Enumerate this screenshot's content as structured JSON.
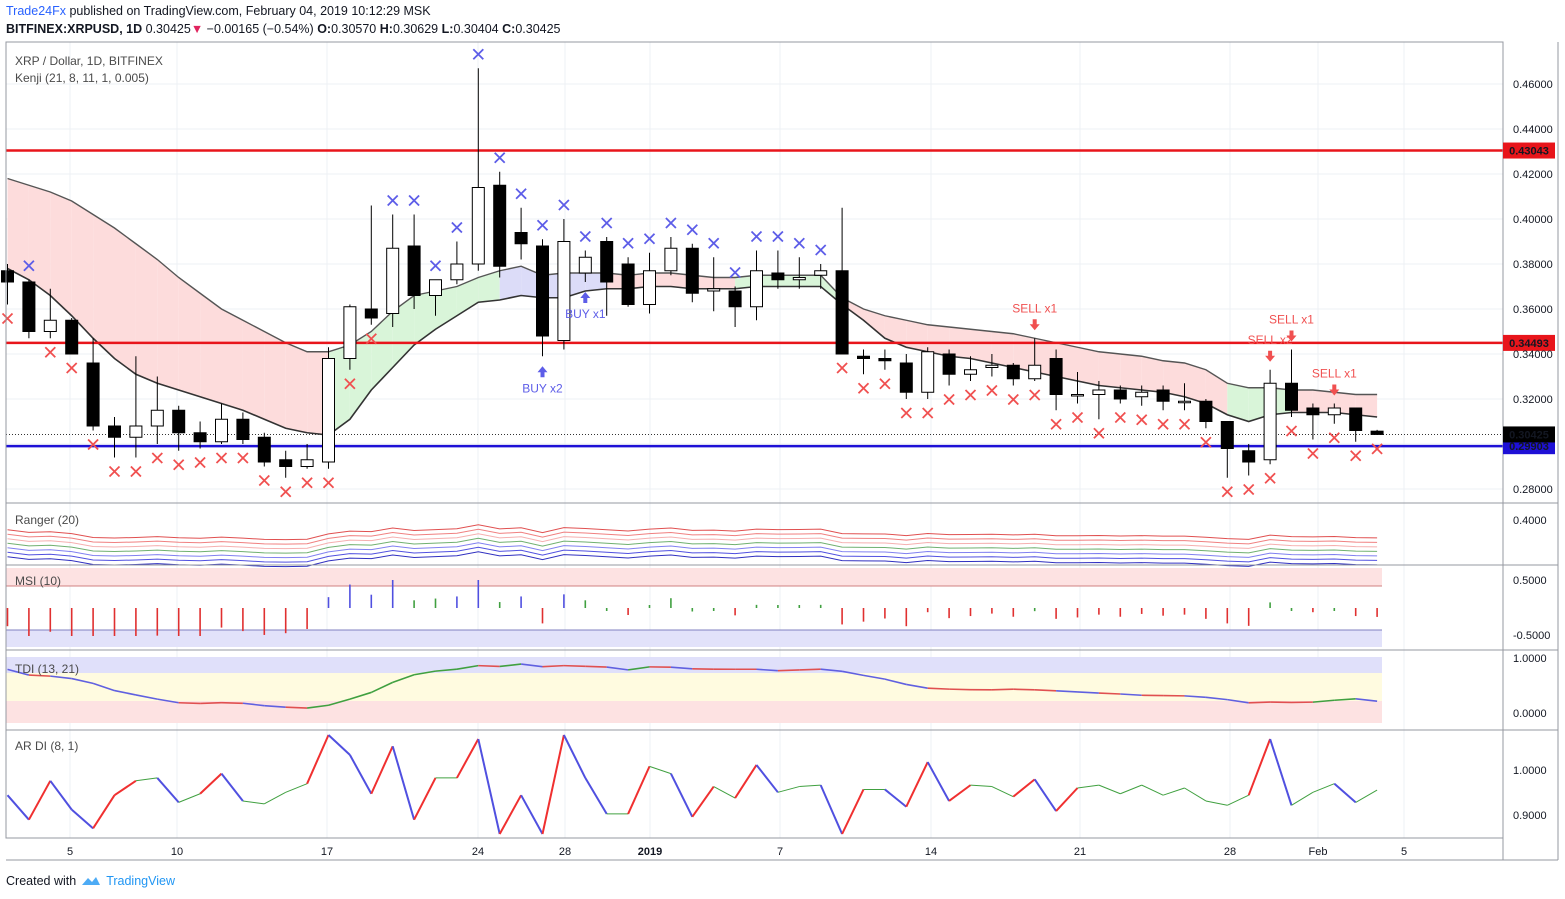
{
  "header": {
    "publisher": "Trade24Fx",
    "published_text": "published on TradingView.com, February 04, 2019 10:12:29 MSK",
    "symbol": "BITFINEX:XRPUSD, 1D",
    "last": "0.30425",
    "change": "−0.00165 (−0.54%)",
    "o_label": "O:",
    "o": "0.30570",
    "h_label": "H:",
    "h": "0.30629",
    "l_label": "L:",
    "l": "0.30404",
    "c_label": "C:",
    "c": "0.30425"
  },
  "main_pane": {
    "title": "XRP / Dollar, 1D, BITFINEX",
    "indicator": "Kenji (21, 8, 11, 1, 0.005)",
    "price_ticks": [
      "0.46000",
      "0.44000",
      "0.42000",
      "0.40000",
      "0.38000",
      "0.36000",
      "0.34000",
      "0.32000",
      "0.28000"
    ],
    "levels": [
      {
        "label": "0.43043",
        "value": 0.43043,
        "color": "#e8151b"
      },
      {
        "label": "0.34493",
        "value": 0.34493,
        "color": "#e8151b"
      },
      {
        "label": "0.29903",
        "value": 0.29903,
        "color": "#1e10d6"
      }
    ],
    "last_price_label": "0.30425",
    "signals": [
      {
        "text": "BUY x2",
        "type": "buy",
        "bar": 25
      },
      {
        "text": "BUY x1",
        "type": "buy",
        "bar": 27
      },
      {
        "text": "SELL x1",
        "type": "sell",
        "bar": 48
      },
      {
        "text": "SELL x2",
        "type": "sell",
        "bar": 59
      },
      {
        "text": "SELL x1",
        "type": "sell",
        "bar": 60
      },
      {
        "text": "SELL x1",
        "type": "sell",
        "bar": 62
      }
    ]
  },
  "panes": {
    "ranger": {
      "label": "Ranger (20)",
      "tick": "0.4000"
    },
    "msi": {
      "label": "MSI (10)",
      "ticks": [
        "0.5000",
        "-0.5000"
      ]
    },
    "tdi": {
      "label": "TDI (13, 21)",
      "ticks": [
        "1.0000",
        "0.0000"
      ]
    },
    "ardi": {
      "label": "AR DI (8, 1)",
      "ticks": [
        "1.0000",
        "0.9000"
      ]
    }
  },
  "time_axis": [
    "5",
    "10",
    "17",
    "24",
    "28",
    "2019",
    "7",
    "14",
    "21",
    "28",
    "Feb",
    "5"
  ],
  "colors": {
    "up": "#ffffff",
    "down": "#000000",
    "buy": "#5d5de8",
    "sell": "#f05050",
    "cloud_bear": "#fddcdc",
    "cloud_bull": "#d9f5d9"
  },
  "footer": {
    "created_with": "Created with",
    "brand": "TradingView"
  },
  "chart_data": {
    "type": "candlestick",
    "title": "XRP / Dollar, 1D, BITFINEX",
    "ylabel": "",
    "ylim": [
      0.2735,
      0.4755
    ],
    "candles": [
      {
        "o": 0.377,
        "h": 0.38,
        "l": 0.362,
        "c": 0.372
      },
      {
        "o": 0.372,
        "h": 0.373,
        "l": 0.347,
        "c": 0.35
      },
      {
        "o": 0.35,
        "h": 0.369,
        "l": 0.347,
        "c": 0.355
      },
      {
        "o": 0.355,
        "h": 0.356,
        "l": 0.34,
        "c": 0.34
      },
      {
        "o": 0.336,
        "h": 0.347,
        "l": 0.306,
        "c": 0.308
      },
      {
        "o": 0.308,
        "h": 0.312,
        "l": 0.294,
        "c": 0.303
      },
      {
        "o": 0.303,
        "h": 0.339,
        "l": 0.294,
        "c": 0.308
      },
      {
        "o": 0.308,
        "h": 0.33,
        "l": 0.3,
        "c": 0.315
      },
      {
        "o": 0.315,
        "h": 0.317,
        "l": 0.297,
        "c": 0.305
      },
      {
        "o": 0.305,
        "h": 0.31,
        "l": 0.298,
        "c": 0.301
      },
      {
        "o": 0.301,
        "h": 0.318,
        "l": 0.3,
        "c": 0.311
      },
      {
        "o": 0.311,
        "h": 0.314,
        "l": 0.3,
        "c": 0.302
      },
      {
        "o": 0.303,
        "h": 0.305,
        "l": 0.29,
        "c": 0.292
      },
      {
        "o": 0.293,
        "h": 0.297,
        "l": 0.285,
        "c": 0.29
      },
      {
        "o": 0.29,
        "h": 0.3,
        "l": 0.289,
        "c": 0.293
      },
      {
        "o": 0.292,
        "h": 0.343,
        "l": 0.289,
        "c": 0.338
      },
      {
        "o": 0.338,
        "h": 0.362,
        "l": 0.333,
        "c": 0.361
      },
      {
        "o": 0.36,
        "h": 0.406,
        "l": 0.353,
        "c": 0.356
      },
      {
        "o": 0.358,
        "h": 0.402,
        "l": 0.352,
        "c": 0.387
      },
      {
        "o": 0.388,
        "h": 0.402,
        "l": 0.36,
        "c": 0.366
      },
      {
        "o": 0.366,
        "h": 0.373,
        "l": 0.357,
        "c": 0.373
      },
      {
        "o": 0.373,
        "h": 0.39,
        "l": 0.371,
        "c": 0.38
      },
      {
        "o": 0.38,
        "h": 0.467,
        "l": 0.377,
        "c": 0.414
      },
      {
        "o": 0.415,
        "h": 0.421,
        "l": 0.374,
        "c": 0.379
      },
      {
        "o": 0.394,
        "h": 0.405,
        "l": 0.382,
        "c": 0.389
      },
      {
        "o": 0.388,
        "h": 0.391,
        "l": 0.339,
        "c": 0.348
      },
      {
        "o": 0.346,
        "h": 0.4,
        "l": 0.342,
        "c": 0.39
      },
      {
        "o": 0.376,
        "h": 0.386,
        "l": 0.372,
        "c": 0.383
      },
      {
        "o": 0.39,
        "h": 0.392,
        "l": 0.357,
        "c": 0.372
      },
      {
        "o": 0.38,
        "h": 0.383,
        "l": 0.361,
        "c": 0.362
      },
      {
        "o": 0.362,
        "h": 0.385,
        "l": 0.358,
        "c": 0.377
      },
      {
        "o": 0.377,
        "h": 0.392,
        "l": 0.375,
        "c": 0.387
      },
      {
        "o": 0.387,
        "h": 0.389,
        "l": 0.363,
        "c": 0.367
      },
      {
        "o": 0.368,
        "h": 0.383,
        "l": 0.359,
        "c": 0.369
      },
      {
        "o": 0.368,
        "h": 0.37,
        "l": 0.352,
        "c": 0.361
      },
      {
        "o": 0.361,
        "h": 0.386,
        "l": 0.355,
        "c": 0.377
      },
      {
        "o": 0.376,
        "h": 0.386,
        "l": 0.369,
        "c": 0.373
      },
      {
        "o": 0.373,
        "h": 0.383,
        "l": 0.369,
        "c": 0.374
      },
      {
        "o": 0.375,
        "h": 0.38,
        "l": 0.369,
        "c": 0.377
      },
      {
        "o": 0.377,
        "h": 0.405,
        "l": 0.34,
        "c": 0.34
      },
      {
        "o": 0.339,
        "h": 0.342,
        "l": 0.331,
        "c": 0.338
      },
      {
        "o": 0.338,
        "h": 0.342,
        "l": 0.333,
        "c": 0.337
      },
      {
        "o": 0.336,
        "h": 0.34,
        "l": 0.32,
        "c": 0.323
      },
      {
        "o": 0.323,
        "h": 0.343,
        "l": 0.32,
        "c": 0.341
      },
      {
        "o": 0.34,
        "h": 0.342,
        "l": 0.326,
        "c": 0.331
      },
      {
        "o": 0.331,
        "h": 0.339,
        "l": 0.328,
        "c": 0.333
      },
      {
        "o": 0.334,
        "h": 0.34,
        "l": 0.33,
        "c": 0.335
      },
      {
        "o": 0.335,
        "h": 0.336,
        "l": 0.326,
        "c": 0.329
      },
      {
        "o": 0.329,
        "h": 0.347,
        "l": 0.328,
        "c": 0.335
      },
      {
        "o": 0.338,
        "h": 0.342,
        "l": 0.315,
        "c": 0.322
      },
      {
        "o": 0.322,
        "h": 0.332,
        "l": 0.318,
        "c": 0.322
      },
      {
        "o": 0.322,
        "h": 0.328,
        "l": 0.311,
        "c": 0.324
      },
      {
        "o": 0.324,
        "h": 0.326,
        "l": 0.318,
        "c": 0.32
      },
      {
        "o": 0.321,
        "h": 0.326,
        "l": 0.317,
        "c": 0.323
      },
      {
        "o": 0.324,
        "h": 0.326,
        "l": 0.315,
        "c": 0.319
      },
      {
        "o": 0.319,
        "h": 0.327,
        "l": 0.315,
        "c": 0.319
      },
      {
        "o": 0.319,
        "h": 0.32,
        "l": 0.307,
        "c": 0.31
      },
      {
        "o": 0.31,
        "h": 0.31,
        "l": 0.285,
        "c": 0.298
      },
      {
        "o": 0.297,
        "h": 0.3,
        "l": 0.286,
        "c": 0.292
      },
      {
        "o": 0.293,
        "h": 0.333,
        "l": 0.291,
        "c": 0.327
      },
      {
        "o": 0.327,
        "h": 0.342,
        "l": 0.312,
        "c": 0.315
      },
      {
        "o": 0.316,
        "h": 0.318,
        "l": 0.302,
        "c": 0.313
      },
      {
        "o": 0.313,
        "h": 0.318,
        "l": 0.309,
        "c": 0.316
      },
      {
        "o": 0.316,
        "h": 0.316,
        "l": 0.301,
        "c": 0.306
      },
      {
        "o": 0.3057,
        "h": 0.30629,
        "l": 0.30404,
        "c": 0.30425
      }
    ],
    "kenji_upper": [
      0.418,
      0.415,
      0.412,
      0.408,
      0.402,
      0.396,
      0.389,
      0.382,
      0.374,
      0.367,
      0.36,
      0.355,
      0.35,
      0.345,
      0.341,
      0.341,
      0.344,
      0.35,
      0.359,
      0.366,
      0.368,
      0.37,
      0.374,
      0.377,
      0.379,
      0.375,
      0.376,
      0.376,
      0.376,
      0.375,
      0.376,
      0.376,
      0.375,
      0.374,
      0.374,
      0.375,
      0.375,
      0.375,
      0.375,
      0.365,
      0.36,
      0.357,
      0.355,
      0.353,
      0.352,
      0.351,
      0.35,
      0.349,
      0.347,
      0.345,
      0.343,
      0.341,
      0.34,
      0.339,
      0.337,
      0.336,
      0.333,
      0.327,
      0.325,
      0.325,
      0.324,
      0.324,
      0.323,
      0.322,
      0.322
    ],
    "kenji_lower": [
      0.378,
      0.373,
      0.366,
      0.357,
      0.347,
      0.338,
      0.331,
      0.327,
      0.324,
      0.321,
      0.318,
      0.315,
      0.311,
      0.307,
      0.305,
      0.304,
      0.311,
      0.324,
      0.334,
      0.344,
      0.351,
      0.357,
      0.363,
      0.364,
      0.366,
      0.365,
      0.365,
      0.368,
      0.369,
      0.369,
      0.37,
      0.37,
      0.369,
      0.369,
      0.369,
      0.37,
      0.37,
      0.37,
      0.37,
      0.362,
      0.355,
      0.347,
      0.343,
      0.341,
      0.339,
      0.338,
      0.336,
      0.334,
      0.332,
      0.33,
      0.328,
      0.326,
      0.325,
      0.324,
      0.323,
      0.321,
      0.318,
      0.313,
      0.31,
      0.313,
      0.314,
      0.314,
      0.314,
      0.313,
      0.312
    ]
  }
}
